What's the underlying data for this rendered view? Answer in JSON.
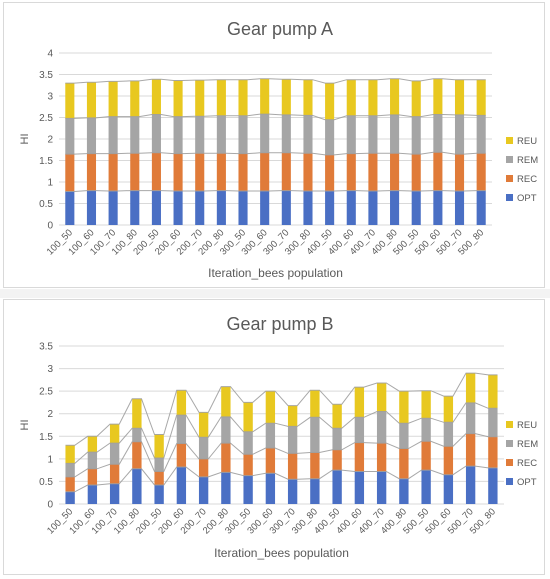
{
  "colors": {
    "OPT": "#4a6fc4",
    "REC": "#e07b39",
    "REM": "#a5a5a5",
    "REU": "#e8c820",
    "grid": "#d9d9d9",
    "text": "#595959"
  },
  "chart_data": [
    {
      "type": "bar",
      "stacked": true,
      "title": "Gear pump A",
      "xlabel": "Iteration_bees population",
      "ylabel": "HI",
      "ylim": [
        0,
        4
      ],
      "yticks": [
        0,
        0.5,
        1,
        1.5,
        2,
        2.5,
        3,
        3.5,
        4
      ],
      "grid": true,
      "legend_position": "right",
      "categories": [
        "100_50",
        "100_60",
        "100_70",
        "100_80",
        "200_50",
        "200_60",
        "200_70",
        "200_80",
        "300_50",
        "300_60",
        "300_70",
        "300_80",
        "400_50",
        "400_60",
        "400_70",
        "400_80",
        "500_50",
        "500_60",
        "500_70",
        "500_80"
      ],
      "series": [
        {
          "name": "OPT",
          "values": [
            0.78,
            0.8,
            0.79,
            0.8,
            0.8,
            0.79,
            0.79,
            0.8,
            0.79,
            0.79,
            0.8,
            0.79,
            0.79,
            0.8,
            0.79,
            0.8,
            0.79,
            0.8,
            0.79,
            0.8
          ]
        },
        {
          "name": "REC",
          "values": [
            0.87,
            0.86,
            0.87,
            0.87,
            0.88,
            0.87,
            0.88,
            0.87,
            0.87,
            0.89,
            0.88,
            0.88,
            0.84,
            0.86,
            0.88,
            0.87,
            0.86,
            0.89,
            0.86,
            0.87
          ]
        },
        {
          "name": "REM",
          "values": [
            0.83,
            0.83,
            0.86,
            0.85,
            0.89,
            0.86,
            0.86,
            0.87,
            0.88,
            0.9,
            0.88,
            0.88,
            0.82,
            0.88,
            0.87,
            0.89,
            0.87,
            0.88,
            0.91,
            0.88
          ]
        },
        {
          "name": "REU",
          "values": [
            0.82,
            0.83,
            0.82,
            0.83,
            0.82,
            0.84,
            0.84,
            0.84,
            0.84,
            0.82,
            0.83,
            0.83,
            0.85,
            0.84,
            0.84,
            0.84,
            0.83,
            0.83,
            0.82,
            0.83
          ]
        }
      ]
    },
    {
      "type": "bar",
      "stacked": true,
      "title": "Gear pump B",
      "xlabel": "Iteration_bees population",
      "ylabel": "HI",
      "ylim": [
        0,
        3.5
      ],
      "yticks": [
        0,
        0.5,
        1,
        1.5,
        2,
        2.5,
        3,
        3.5
      ],
      "grid": true,
      "legend_position": "right",
      "categories": [
        "100_50",
        "100_60",
        "100_70",
        "100_80",
        "200_50",
        "200_60",
        "200_70",
        "200_80",
        "300_50",
        "300_60",
        "300_70",
        "300_80",
        "400_50",
        "400_60",
        "400_70",
        "400_80",
        "500_50",
        "500_60",
        "500_70",
        "500_80"
      ],
      "series": [
        {
          "name": "OPT",
          "values": [
            0.27,
            0.42,
            0.45,
            0.78,
            0.42,
            0.82,
            0.6,
            0.7,
            0.63,
            0.68,
            0.55,
            0.56,
            0.75,
            0.72,
            0.72,
            0.56,
            0.75,
            0.65,
            0.84,
            0.8
          ]
        },
        {
          "name": "REC",
          "values": [
            0.33,
            0.36,
            0.43,
            0.6,
            0.3,
            0.52,
            0.4,
            0.65,
            0.47,
            0.56,
            0.57,
            0.58,
            0.45,
            0.64,
            0.63,
            0.67,
            0.64,
            0.63,
            0.72,
            0.69
          ]
        },
        {
          "name": "REM",
          "values": [
            0.3,
            0.37,
            0.47,
            0.3,
            0.3,
            0.63,
            0.48,
            0.58,
            0.5,
            0.55,
            0.6,
            0.78,
            0.48,
            0.56,
            0.7,
            0.56,
            0.51,
            0.53,
            0.68,
            0.63
          ]
        },
        {
          "name": "REU",
          "values": [
            0.4,
            0.35,
            0.42,
            0.65,
            0.52,
            0.55,
            0.55,
            0.67,
            0.65,
            0.71,
            0.46,
            0.6,
            0.53,
            0.67,
            0.63,
            0.71,
            0.61,
            0.58,
            0.66,
            0.74
          ]
        }
      ]
    }
  ]
}
